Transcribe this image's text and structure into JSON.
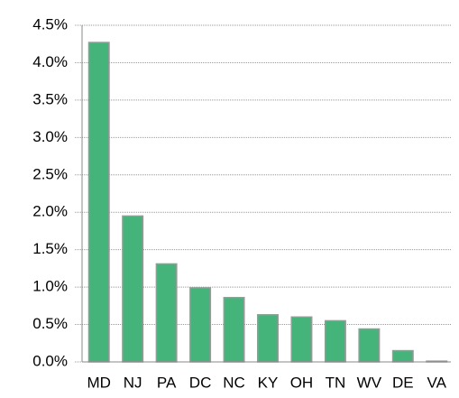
{
  "chart_data": {
    "type": "bar",
    "categories": [
      "MD",
      "NJ",
      "PA",
      "DC",
      "NC",
      "KY",
      "OH",
      "TN",
      "WV",
      "DE",
      "VA"
    ],
    "values": [
      4.27,
      1.95,
      1.31,
      0.99,
      0.86,
      0.63,
      0.6,
      0.55,
      0.44,
      0.15,
      0.01
    ],
    "color": "#45b47a",
    "ylim": [
      0,
      4.5
    ],
    "yticks": [
      {
        "value": 0,
        "label": "0.0%"
      },
      {
        "value": 0.5,
        "label": "0.5%"
      },
      {
        "value": 1,
        "label": "1.0%"
      },
      {
        "value": 1.5,
        "label": "1.5%"
      },
      {
        "value": 2,
        "label": "2.0%"
      },
      {
        "value": 2.5,
        "label": "2.5%"
      },
      {
        "value": 3,
        "label": "3.0%"
      },
      {
        "value": 3.5,
        "label": "3.5%"
      },
      {
        "value": 4,
        "label": "4.0%"
      },
      {
        "value": 4.5,
        "label": "4.5%"
      }
    ],
    "grid": true
  }
}
